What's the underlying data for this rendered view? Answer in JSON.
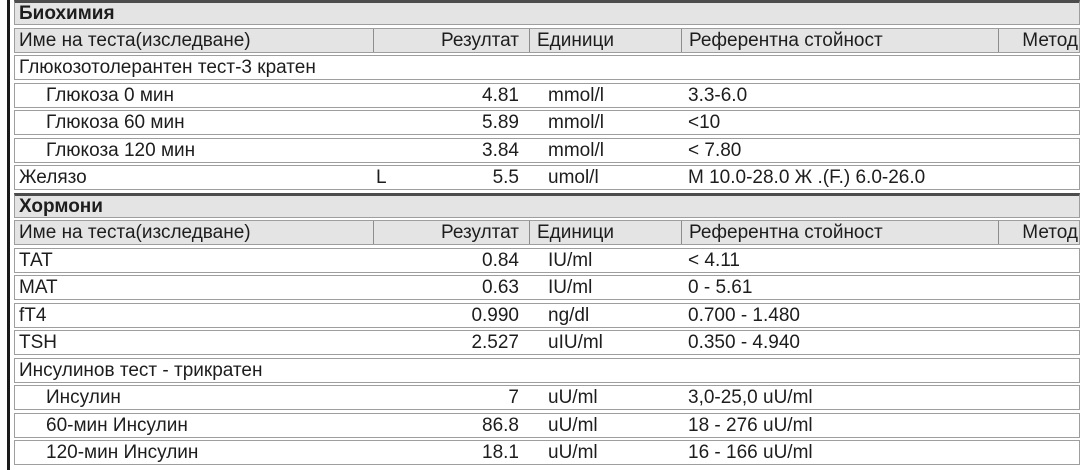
{
  "colors": {
    "background": "#ffffff",
    "band_bg": "#e4e4e4",
    "row_border": "#9e9e9e",
    "section_top_border": "#4c4c4c",
    "left_bar": "#1a1a1a",
    "text": "#1d1d1d"
  },
  "columns": {
    "name": "Име на теста(изследване)",
    "result": "Резултат",
    "units": "Единици",
    "reference": "Референтна стойност",
    "method": "Метод"
  },
  "rows": [
    {
      "type": "section",
      "label": "Биохимия"
    },
    {
      "type": "colheader"
    },
    {
      "type": "group",
      "name": "Глюкозотолерантен тест-3 кратен"
    },
    {
      "type": "data",
      "indent": true,
      "name": "Глюкоза 0 мин",
      "flag": "",
      "result": "4.81",
      "units": "mmol/l",
      "reference": "3.3-6.0",
      "method": ""
    },
    {
      "type": "data",
      "indent": true,
      "name": "Глюкоза 60 мин",
      "flag": "",
      "result": "5.89",
      "units": "mmol/l",
      "reference": "<10",
      "method": ""
    },
    {
      "type": "data",
      "indent": true,
      "name": "Глюкоза 120 мин",
      "flag": "",
      "result": "3.84",
      "units": "mmol/l",
      "reference": "< 7.80",
      "method": ""
    },
    {
      "type": "data",
      "indent": false,
      "name": "Желязо",
      "flag": "L",
      "result": "5.5",
      "units": "umol/l",
      "reference": "М 10.0-28.0 Ж .(F.) 6.0-26.0",
      "method": ""
    },
    {
      "type": "section",
      "label": "Хормони"
    },
    {
      "type": "colheader"
    },
    {
      "type": "data",
      "indent": false,
      "name": "ТАТ",
      "flag": "",
      "result": "0.84",
      "units": "IU/ml",
      "reference": "< 4.11",
      "method": ""
    },
    {
      "type": "data",
      "indent": false,
      "name": "МАТ",
      "flag": "",
      "result": "0.63",
      "units": "IU/ml",
      "reference": "0 - 5.61",
      "method": ""
    },
    {
      "type": "data",
      "indent": false,
      "name": "fT4",
      "flag": "",
      "result": "0.990",
      "units": "ng/dl",
      "reference": "0.700 - 1.480",
      "method": ""
    },
    {
      "type": "data",
      "indent": false,
      "name": "TSH",
      "flag": "",
      "result": "2.527",
      "units": "uIU/ml",
      "reference": "0.350 - 4.940",
      "method": ""
    },
    {
      "type": "group",
      "name": "Инсулинов тест - трикратен"
    },
    {
      "type": "data",
      "indent": true,
      "name": "Инсулин",
      "flag": "",
      "result": "7",
      "units": "uU/ml",
      "reference": "3,0-25,0 uU/ml",
      "method": ""
    },
    {
      "type": "data",
      "indent": true,
      "name": "60-мин Инсулин",
      "flag": "",
      "result": "86.8",
      "units": "uU/ml",
      "reference": "18 - 276 uU/ml",
      "method": ""
    },
    {
      "type": "data",
      "indent": true,
      "name": "120-мин Инсулин",
      "flag": "",
      "result": "18.1",
      "units": "uU/ml",
      "reference": "16 - 166 uU/ml",
      "method": ""
    }
  ]
}
